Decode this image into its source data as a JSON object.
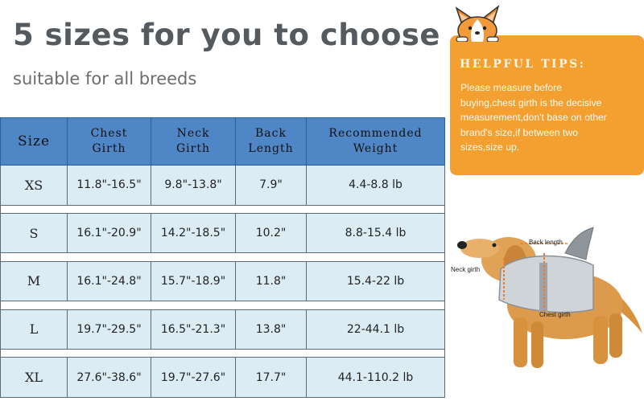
{
  "headline": "5 sizes for you to choose",
  "subheadline": "suitable for all breeds",
  "table": {
    "headers": [
      [
        "Size"
      ],
      [
        "Chest",
        "Girth"
      ],
      [
        "Neck",
        "Girth"
      ],
      [
        "Back",
        "Length"
      ],
      [
        "Recommended",
        "Weight"
      ]
    ],
    "rows": [
      [
        "XS",
        "11.8\"-16.5\"",
        "9.8\"-13.8\"",
        "7.9\"",
        "4.4-8.8 lb"
      ],
      [
        "S",
        "16.1\"-20.9\"",
        "14.2\"-18.5\"",
        "10.2\"",
        "8.8-15.4 lb"
      ],
      [
        "M",
        "16.1\"-24.8\"",
        "15.7\"-18.9\"",
        "11.8\"",
        "15.4-22 lb"
      ],
      [
        "L",
        "19.7\"-29.5\"",
        "16.5\"-21.3\"",
        "13.8\"",
        "22-44.1 lb"
      ],
      [
        "XL",
        "27.6\"-38.6\"",
        "19.7\"-27.6\"",
        "17.7\"",
        "44.1-110.2 lb"
      ]
    ]
  },
  "tips": {
    "title": "HELPFUL TIPS:",
    "lines": [
      "Please measure before",
      "buying,chest girth is the decisive",
      "measurement,don't base on other",
      "brand's size,if between two",
      "sizes,size up."
    ]
  },
  "diagram": {
    "back_label": "Back length",
    "neck_label": "Neck girth",
    "chest_label": "Chest girth"
  },
  "colors": {
    "header_bg": "#4f86c6",
    "row_bg": "#dcecf5",
    "tips_bg": "#f4a030"
  },
  "icons": [
    "corgi-mascot-icon",
    "dog-life-jacket-image"
  ]
}
